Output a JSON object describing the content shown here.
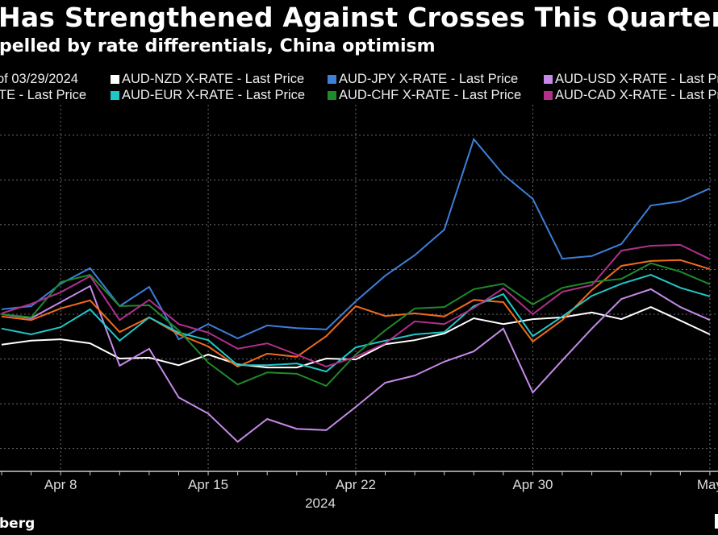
{
  "title": "Has Strengthened Against Crosses This Quarter",
  "subtitle": "pelled by rate differentials, China optimism",
  "legend": [
    {
      "label": "of 03/29/2024",
      "color": null
    },
    {
      "label": "AUD-NZD X-RATE - Last Price",
      "color": "#ffffff"
    },
    {
      "label": "AUD-JPY X-RATE - Last Price",
      "color": "#3d7fd9"
    },
    {
      "label": "AUD-USD X-RATE - Last Price",
      "color": "#c58ae8"
    },
    {
      "label": "TE - Last Price",
      "color": null
    },
    {
      "label": "AUD-EUR X-RATE - Last Price",
      "color": "#1fc8c8"
    },
    {
      "label": "AUD-CHF X-RATE - Last Price",
      "color": "#1f8a2a"
    },
    {
      "label": "AUD-CAD X-RATE - Last Price",
      "color": "#b0308a"
    }
  ],
  "source": "berg",
  "chart_data": {
    "type": "line",
    "x": [
      "2024-04-04",
      "2024-04-05",
      "2024-04-08",
      "2024-04-09",
      "2024-04-10",
      "2024-04-11",
      "2024-04-12",
      "2024-04-15",
      "2024-04-16",
      "2024-04-17",
      "2024-04-18",
      "2024-04-19",
      "2024-04-22",
      "2024-04-23",
      "2024-04-24",
      "2024-04-25",
      "2024-04-26",
      "2024-04-29",
      "2024-04-30",
      "2024-05-01",
      "2024-05-02",
      "2024-05-03",
      "2024-05-06",
      "2024-05-07",
      "2024-05-08"
    ],
    "x_ticks": [
      {
        "index": 2,
        "label": "Apr 8"
      },
      {
        "index": 7,
        "label": "Apr 15"
      },
      {
        "index": 12,
        "label": "Apr 22"
      },
      {
        "index": 18,
        "label": "Apr 30"
      },
      {
        "index": 24,
        "label": "May"
      }
    ],
    "x_year_label": "2024",
    "ylim": [
      -3.51,
      4.5
    ],
    "y_gridlines": [
      -3,
      -2,
      -1,
      0,
      1,
      2,
      3,
      4
    ],
    "grid": true,
    "legend_position": "top",
    "series": [
      {
        "name": "AUD-NZD X-RATE - Last Price",
        "color": "#ffffff",
        "values": [
          -0.68,
          -0.59,
          -0.56,
          -0.65,
          -0.99,
          -0.97,
          -1.14,
          -0.9,
          -1.12,
          -1.19,
          -1.19,
          -0.99,
          -1.01,
          -0.67,
          -0.58,
          -0.43,
          -0.09,
          -0.22,
          -0.11,
          -0.07,
          0.04,
          -0.11,
          0.16,
          -0.14,
          -0.45
        ]
      },
      {
        "name": "AUD-JPY X-RATE - Last Price",
        "color": "#3d7fd9",
        "values": [
          0.11,
          0.18,
          0.68,
          1.03,
          0.18,
          0.61,
          -0.56,
          -0.22,
          -0.54,
          -0.25,
          -0.31,
          -0.34,
          0.29,
          0.86,
          1.32,
          1.89,
          3.91,
          3.12,
          2.58,
          1.24,
          1.3,
          1.57,
          2.43,
          2.52,
          2.81
        ]
      },
      {
        "name": "AUD-USD X-RATE - Last Price",
        "color": "#c58ae8",
        "values": [
          0,
          -0.09,
          0.27,
          0.63,
          -1.15,
          -0.77,
          -1.86,
          -2.22,
          -2.85,
          -2.34,
          -2.56,
          -2.59,
          -2.07,
          -1.53,
          -1.37,
          -1.06,
          -0.83,
          -0.32,
          -1.75,
          -1.03,
          -0.32,
          0.34,
          0.56,
          0.16,
          -0.13
        ]
      },
      {
        "color": "#f26a1b",
        "values": [
          -0.05,
          -0.13,
          0.13,
          0.31,
          -0.4,
          -0.07,
          -0.45,
          -0.72,
          -1.17,
          -0.88,
          -0.95,
          -0.49,
          0.18,
          -0.04,
          0.02,
          -0.05,
          0.32,
          0.27,
          -0.61,
          -0.13,
          0.54,
          1.08,
          1.19,
          1.21,
          1.01
        ]
      },
      {
        "name": "AUD-EUR X-RATE - Last Price",
        "color": "#1fc8c8",
        "values": [
          -0.32,
          -0.45,
          -0.29,
          0.11,
          -0.59,
          -0.07,
          -0.41,
          -0.58,
          -1.14,
          -1.14,
          -1.1,
          -1.28,
          -0.74,
          -0.59,
          -0.45,
          -0.4,
          0.18,
          0.45,
          -0.49,
          -0.05,
          0.41,
          0.68,
          0.88,
          0.59,
          0.4
        ]
      },
      {
        "name": "AUD-CHF X-RATE - Last Price",
        "color": "#1f8a2a",
        "values": [
          0,
          -0.07,
          0.72,
          0.88,
          0.18,
          0.2,
          -0.36,
          -1.08,
          -1.57,
          -1.3,
          -1.33,
          -1.6,
          -0.9,
          -0.36,
          0.13,
          0.16,
          0.56,
          0.68,
          0.22,
          0.59,
          0.72,
          0.79,
          1.14,
          0.95,
          0.67
        ]
      },
      {
        "name": "AUD-CAD X-RATE - Last Price",
        "color": "#b0308a",
        "values": [
          0.02,
          0.23,
          0.49,
          0.85,
          -0.13,
          0.32,
          -0.22,
          -0.41,
          -0.77,
          -0.65,
          -0.9,
          -1.17,
          -0.95,
          -0.65,
          -0.16,
          -0.22,
          0.14,
          0.58,
          0,
          0.5,
          0.65,
          1.42,
          1.53,
          1.55,
          1.23
        ]
      }
    ]
  }
}
